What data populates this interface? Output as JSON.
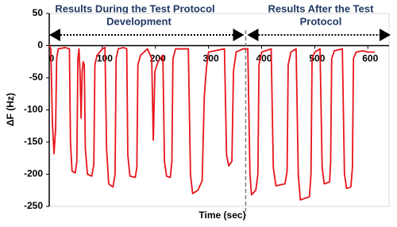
{
  "chart_data": {
    "type": "line",
    "annotations": [
      "Results During the Test Protocol",
      "Development",
      "Results After the Test",
      "Protocol"
    ],
    "xlabel": "Time (sec)",
    "ylabel": "ΔF (Hz)",
    "x": [
      0,
      3,
      6,
      9,
      12,
      14,
      17,
      30,
      38,
      40,
      43,
      49,
      52,
      54,
      56,
      58,
      60,
      62,
      64,
      66,
      68,
      72,
      80,
      84,
      86,
      90,
      100,
      105,
      108,
      112,
      120,
      124,
      126,
      130,
      140,
      146,
      148,
      152,
      162,
      165,
      167,
      172,
      185,
      193,
      196,
      199,
      205,
      214,
      217,
      221,
      228,
      231,
      233,
      238,
      262,
      266,
      270,
      280,
      288,
      292,
      296,
      300,
      330,
      334,
      338,
      344,
      347,
      352,
      365,
      374,
      378,
      381,
      389,
      393,
      395,
      400,
      418,
      422,
      427,
      444,
      448,
      450,
      455,
      465,
      469,
      473,
      490,
      493,
      495,
      500,
      510,
      514,
      518,
      528,
      530,
      532,
      537,
      552,
      556,
      560,
      568,
      571,
      573,
      578,
      590,
      600,
      613
    ],
    "series": [
      {
        "name": "ΔF",
        "color": "#e8141c",
        "values": [
          0,
          -5,
          -120,
          -168,
          -130,
          -20,
          -5,
          -3,
          -5,
          -150,
          -195,
          -198,
          -180,
          -20,
          -5,
          -40,
          -113,
          -40,
          -25,
          -30,
          -160,
          -200,
          -203,
          -185,
          -30,
          -15,
          -5,
          -3,
          -160,
          -215,
          -220,
          -200,
          -20,
          -5,
          -3,
          -5,
          -170,
          -203,
          -205,
          -190,
          -30,
          -15,
          -5,
          -20,
          -147,
          -40,
          -25,
          -15,
          -180,
          -203,
          -205,
          -180,
          -20,
          -5,
          -5,
          -200,
          -230,
          -225,
          -210,
          -80,
          -35,
          -10,
          -5,
          -170,
          -187,
          -180,
          -40,
          -10,
          -5,
          -5,
          -200,
          -232,
          -225,
          -200,
          -30,
          -10,
          -5,
          -190,
          -218,
          -215,
          -195,
          -30,
          -10,
          -5,
          -200,
          -240,
          -235,
          -200,
          -20,
          -10,
          -5,
          -190,
          -215,
          -212,
          -180,
          -20,
          -8,
          -5,
          -200,
          -222,
          -220,
          -190,
          -20,
          -10,
          -8,
          -10,
          -10
        ]
      }
    ],
    "divider_x": 370,
    "xlim": [
      0,
      640
    ],
    "xticks": [
      0,
      100,
      200,
      300,
      400,
      500,
      600
    ],
    "ylim": [
      -250,
      50
    ],
    "yticks": [
      -250,
      -200,
      -150,
      -100,
      -50,
      0,
      50
    ]
  }
}
